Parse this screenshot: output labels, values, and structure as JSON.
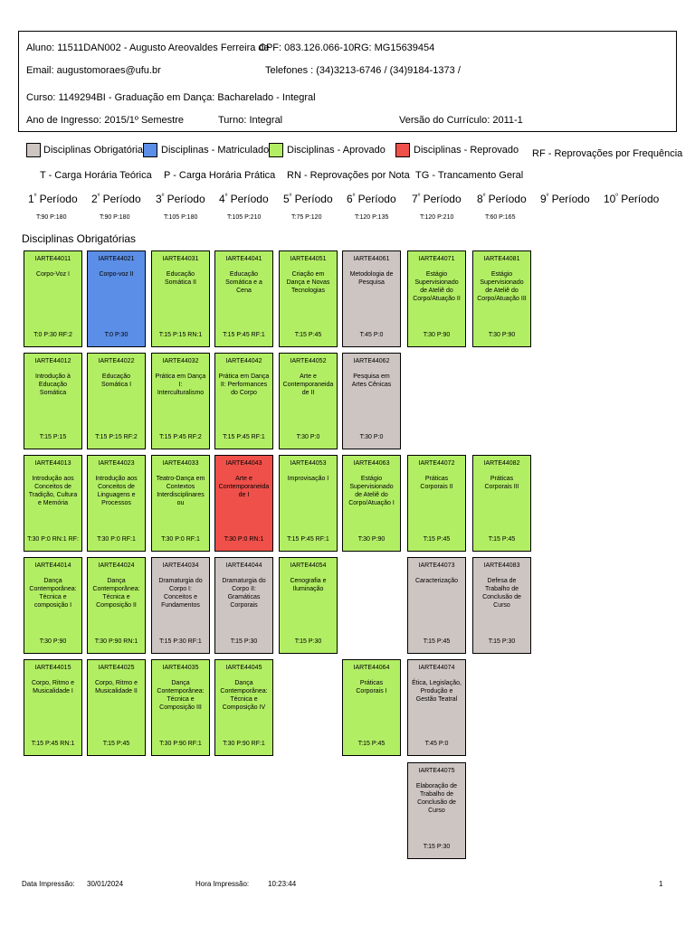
{
  "student": {
    "aluno": "Aluno: 11511DAN002 - Augusto Areovaldes Ferreira de",
    "cpf": "CPF: 083.126.066-10",
    "rg": "RG: MG15639454",
    "email": "Email: augustomoraes@ufu.br",
    "telefones": "Telefones : (34)3213-6746 / (34)9184-1373 /",
    "curso": "Curso: 1149294BI - Graduação em Dança: Bacharelado - Integral",
    "ingresso": "Ano de Ingresso: 2015/1º Semestre",
    "turno": "Turno: Integral",
    "versao": "Versão do Currículo: 2011-1"
  },
  "legend": {
    "items": [
      {
        "label": "Disciplinas Obrigatórias",
        "color": "#cdc5c2"
      },
      {
        "label": "Disciplinas - Matriculado",
        "color": "#5b8ee6"
      },
      {
        "label": "Disciplinas - Aprovado",
        "color": "#b2ee64"
      },
      {
        "label": "Disciplinas - Reprovado",
        "color": "#f0504a"
      }
    ],
    "rf": "RF - Reprovações por Frequência",
    "t": "T - Carga Horária Teórica",
    "p": "P - Carga Horária Prática",
    "rn": "RN - Reprovações por Nota",
    "tg": "TG - Trancamento Geral"
  },
  "periods": [
    {
      "num": "1",
      "label": " Período",
      "hours": "T:90 P:180"
    },
    {
      "num": "2",
      "label": " Período",
      "hours": "T:90 P:180"
    },
    {
      "num": "3",
      "label": " Período",
      "hours": "T:105 P:180"
    },
    {
      "num": "4",
      "label": " Período",
      "hours": "T:105 P:210"
    },
    {
      "num": "5",
      "label": " Período",
      "hours": "T:75 P:120"
    },
    {
      "num": "6",
      "label": " Período",
      "hours": "T:120 P:135"
    },
    {
      "num": "7",
      "label": " Período",
      "hours": "T:120 P:210"
    },
    {
      "num": "8",
      "label": " Período",
      "hours": "T:60 P:165"
    },
    {
      "num": "9",
      "label": " Período",
      "hours": ""
    },
    {
      "num": "10",
      "label": " Período",
      "hours": ""
    }
  ],
  "ordinal_mark": "º",
  "section_title": "Disciplinas Obrigatórias",
  "status_colors": {
    "aprovado": "#b2ee64",
    "matriculado": "#5b8ee6",
    "reprovado": "#f0504a",
    "pendente": "#cdc5c2"
  },
  "courses": [
    {
      "col": 0,
      "row": 0,
      "code": "IARTE44011",
      "name": "Corpo-Voz I",
      "hours": "T:0 P:30   RF:2",
      "status": "aprovado"
    },
    {
      "col": 1,
      "row": 0,
      "code": "IARTE44021",
      "name": "Corpo-voz II",
      "hours": "T:0 P:30",
      "status": "matriculado"
    },
    {
      "col": 2,
      "row": 0,
      "code": "IARTE44031",
      "name": "Educação Somática II",
      "hours": "T:15 P:15 RN:1",
      "status": "aprovado"
    },
    {
      "col": 3,
      "row": 0,
      "code": "IARTE44041",
      "name": "Educação Somática e a Cena",
      "hours": "T:15 P:45   RF:1",
      "status": "aprovado"
    },
    {
      "col": 4,
      "row": 0,
      "code": "IARTE44051",
      "name": "Criação em Dança e Novas Tecnologias",
      "hours": "T:15 P:45",
      "status": "aprovado"
    },
    {
      "col": 5,
      "row": 0,
      "code": "IARTE44061",
      "name": "Metodologia de Pesquisa",
      "hours": "T:45 P:0",
      "status": "pendente"
    },
    {
      "col": 6,
      "row": 0,
      "code": "IARTE44071",
      "name": "Estágio Supervisionado de Ateliê do Corpo/Atuação II",
      "hours": "T:30 P:90",
      "status": "aprovado"
    },
    {
      "col": 7,
      "row": 0,
      "code": "IARTE44081",
      "name": "Estágio Supervisionado de Ateliê do Corpo/Atuação III",
      "hours": "T:30 P:90",
      "status": "aprovado"
    },
    {
      "col": 0,
      "row": 1,
      "code": "IARTE44012",
      "name": "Introdução à Educação Somática",
      "hours": "T:15 P:15",
      "status": "aprovado"
    },
    {
      "col": 1,
      "row": 1,
      "code": "IARTE44022",
      "name": "Educação Somática I",
      "hours": "T:15 P:15   RF:2",
      "status": "aprovado"
    },
    {
      "col": 2,
      "row": 1,
      "code": "IARTE44032",
      "name": "Prática em Dança I: Interculturalismo",
      "hours": "T:15 P:45   RF:2",
      "status": "aprovado"
    },
    {
      "col": 3,
      "row": 1,
      "code": "IARTE44042",
      "name": "Prática em Dança II: Performances do Corpo",
      "hours": "T:15 P:45   RF:1",
      "status": "aprovado"
    },
    {
      "col": 4,
      "row": 1,
      "code": "IARTE44052",
      "name": "Arte e Contemporaneida de II",
      "hours": "T:30 P:0",
      "status": "aprovado"
    },
    {
      "col": 5,
      "row": 1,
      "code": "IARTE44062",
      "name": "Pesquisa em Artes Cênicas",
      "hours": "T:30 P:0",
      "status": "pendente"
    },
    {
      "col": 0,
      "row": 2,
      "code": "IARTE44013",
      "name": "Introdução aos Conceitos de Tradição, Cultura e Memória",
      "hours": "T:30 P:0 RN:1 RF:",
      "status": "aprovado"
    },
    {
      "col": 1,
      "row": 2,
      "code": "IARTE44023",
      "name": "Introdução aos Conceitos de Linguagens e Processos",
      "hours": "T:30 P:0   RF:1",
      "status": "aprovado"
    },
    {
      "col": 2,
      "row": 2,
      "code": "IARTE44033",
      "name": "Teatro-Dança em Contextos Interdisciplinares ou",
      "hours": "T:30 P:0   RF:1",
      "status": "aprovado"
    },
    {
      "col": 3,
      "row": 2,
      "code": "IARTE44043",
      "name": "Arte e Contemporaneida de I",
      "hours": "T:30 P:0 RN:1",
      "status": "reprovado"
    },
    {
      "col": 4,
      "row": 2,
      "code": "IARTE44053",
      "name": "Improvisação I",
      "hours": "T:15 P:45   RF:1",
      "status": "aprovado"
    },
    {
      "col": 5,
      "row": 2,
      "code": "IARTE44063",
      "name": "Estágio Supervisionado de Ateliê do Corpo/Atuação I",
      "hours": "T:30 P:90",
      "status": "aprovado"
    },
    {
      "col": 6,
      "row": 2,
      "code": "IARTE44072",
      "name": "Práticas Corporais II",
      "hours": "T:15 P:45",
      "status": "aprovado"
    },
    {
      "col": 7,
      "row": 2,
      "code": "IARTE44082",
      "name": "Práticas Corporais III",
      "hours": "T:15 P:45",
      "status": "aprovado"
    },
    {
      "col": 0,
      "row": 3,
      "code": "IARTE44014",
      "name": "Dança Contemporânea: Técnica e composição I",
      "hours": "T:30 P:90",
      "status": "aprovado"
    },
    {
      "col": 1,
      "row": 3,
      "code": "IARTE44024",
      "name": "Dança Contemporânea: Técnica e Composição II",
      "hours": "T:30 P:90 RN:1",
      "status": "aprovado"
    },
    {
      "col": 2,
      "row": 3,
      "code": "IARTE44034",
      "name": "Dramaturgia do Corpo I: Conceitos e Fundamentos",
      "hours": "T:15 P:30   RF:1",
      "status": "pendente"
    },
    {
      "col": 3,
      "row": 3,
      "code": "IARTE44044",
      "name": "Dramaturgia do Corpo II: Gramáticas Corporais",
      "hours": "T:15 P:30",
      "status": "pendente"
    },
    {
      "col": 4,
      "row": 3,
      "code": "IARTE44054",
      "name": "Cenografia e Iluminação",
      "hours": "T:15 P:30",
      "status": "aprovado"
    },
    {
      "col": 6,
      "row": 3,
      "code": "IARTE44073",
      "name": "Caracterização",
      "hours": "T:15 P:45",
      "status": "pendente"
    },
    {
      "col": 7,
      "row": 3,
      "code": "IARTE44083",
      "name": "Defesa de Trabalho de Conclusão de Curso",
      "hours": "T:15 P:30",
      "status": "pendente"
    },
    {
      "col": 0,
      "row": 4,
      "code": "IARTE44015",
      "name": "Corpo, Ritmo e Musicalidade I",
      "hours": "T:15 P:45 RN:1",
      "status": "aprovado"
    },
    {
      "col": 1,
      "row": 4,
      "code": "IARTE44025",
      "name": "Corpo, Ritmo e Musicalidade II",
      "hours": "T:15 P:45",
      "status": "aprovado"
    },
    {
      "col": 2,
      "row": 4,
      "code": "IARTE44035",
      "name": "Dança Contemporânea: Técnica e Composição III",
      "hours": "T:30 P:90   RF:1",
      "status": "aprovado"
    },
    {
      "col": 3,
      "row": 4,
      "code": "IARTE44045",
      "name": "Dança Contemporânea: Técnica e Composição IV",
      "hours": "T:30 P:90   RF:1",
      "status": "aprovado"
    },
    {
      "col": 5,
      "row": 4,
      "code": "IARTE44064",
      "name": "Práticas Corporais I",
      "hours": "T:15 P:45",
      "status": "aprovado"
    },
    {
      "col": 6,
      "row": 4,
      "code": "IARTE44074",
      "name": "Ética, Legislação, Produção e Gestão Teatral",
      "hours": "T:45 P:0",
      "status": "pendente"
    },
    {
      "col": 6,
      "row": 5,
      "code": "IARTE44075",
      "name": "Elaboração de Trabalho de Conclusão de Curso",
      "hours": "T:15 P:30",
      "status": "pendente"
    }
  ],
  "footer": {
    "data_label": "Data Impressão:",
    "data_value": "30/01/2024",
    "hora_label": "Hora Impressão:",
    "hora_value": "10:23:44",
    "page": "1"
  }
}
